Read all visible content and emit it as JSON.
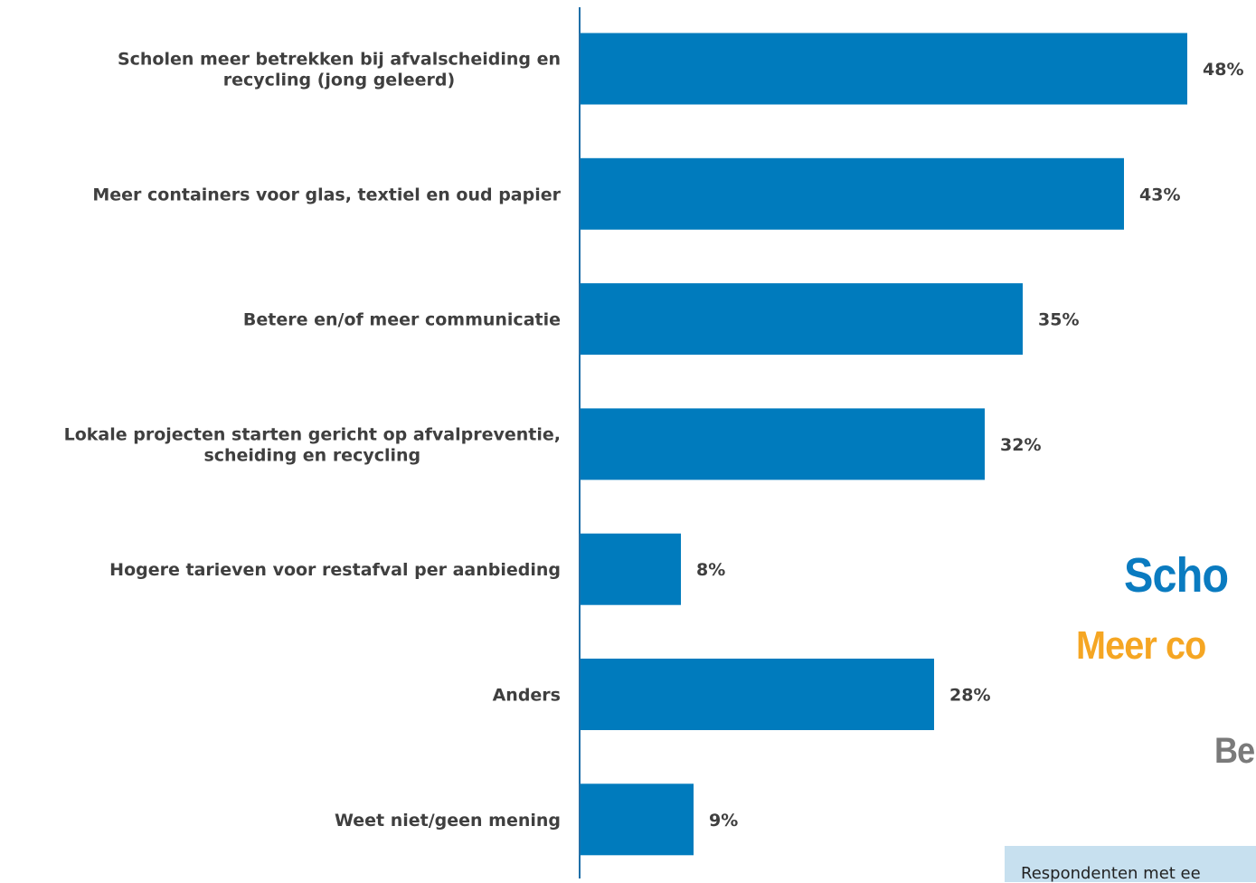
{
  "chart_data": {
    "type": "bar",
    "orientation": "horizontal",
    "categories": [
      "Scholen meer betrekken bij afvalscheiding en recycling (jong geleerd)",
      "Meer containers voor glas, textiel en oud papier",
      "Betere en/of meer communicatie",
      "Lokale projecten starten gericht op afvalpreventie, scheiding en recycling",
      "Hogere tarieven voor restafval per aanbieding",
      "Anders",
      "Weet niet/geen mening"
    ],
    "category_lines": [
      [
        "Scholen meer betrekken bij afvalscheiding en",
        "recycling (jong geleerd)"
      ],
      [
        "Meer containers voor glas, textiel en oud papier"
      ],
      [
        "Betere en/of meer communicatie"
      ],
      [
        "Lokale projecten starten gericht op afvalpreventie,",
        "scheiding en recycling"
      ],
      [
        "Hogere tarieven voor restafval per aanbieding"
      ],
      [
        "Anders"
      ],
      [
        "Weet niet/geen mening"
      ]
    ],
    "values": [
      48,
      43,
      35,
      32,
      8,
      28,
      9
    ],
    "value_labels": [
      "48%",
      "43%",
      "35%",
      "32%",
      "8%",
      "28%",
      "9%"
    ],
    "unit": "%",
    "bar_color": "#007bbd",
    "axis_color": "#1f6fa8",
    "grid": false,
    "legend": "none"
  },
  "wordcloud": {
    "word1": "Scho",
    "word1_color": "#0a7bc0",
    "word2": "Meer co",
    "word2_color": "#f5a623",
    "word3": "Be",
    "word3_color": "#7a7a7a"
  },
  "note": {
    "text": "Respondenten met ee",
    "background": "#c7e0ef"
  }
}
